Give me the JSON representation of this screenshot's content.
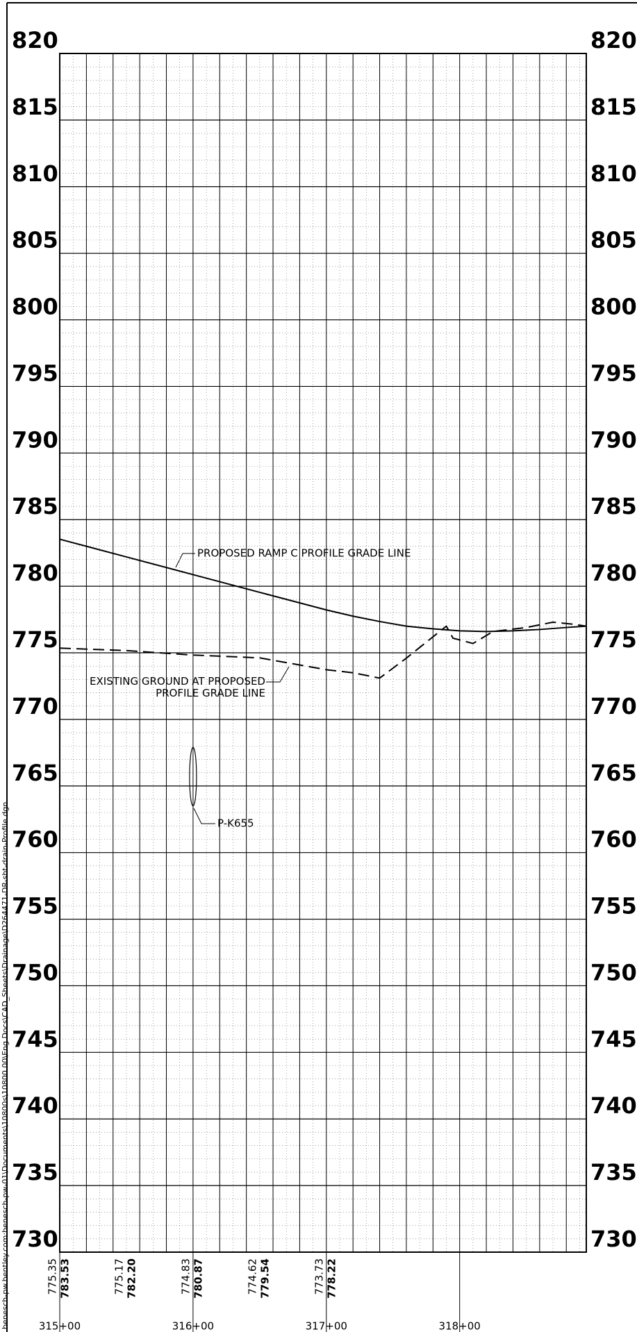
{
  "chart_data": {
    "type": "line",
    "file_path": "benesch-pw.bentley.com:benesch-pw-01\\Documents\\10800s\\10800.00\\Eng Docs\\CAD_Sheets\\Drainage\\D264471-DR-sht-drain-Profile.dgn",
    "xlim": [
      31500,
      31895
    ],
    "ylim": [
      730,
      820
    ],
    "xticks": [
      {
        "value": 31500,
        "label": "315+00"
      },
      {
        "value": 31600,
        "label": "316+00"
      },
      {
        "value": 31700,
        "label": "317+00"
      },
      {
        "value": 31800,
        "label": "318+00"
      }
    ],
    "yticks": [
      730,
      735,
      740,
      745,
      750,
      755,
      760,
      765,
      770,
      775,
      780,
      785,
      790,
      795,
      800,
      805,
      810,
      815,
      820
    ],
    "grid": {
      "x_major": 20,
      "x_minor": 10,
      "y_minor": 1
    },
    "series": [
      {
        "name": "PROPOSED RAMP C PROFILE GRADE LINE",
        "color": "#000000",
        "dash": false,
        "x": [
          31500,
          31550,
          31600,
          31650,
          31700,
          31720,
          31740,
          31760,
          31780,
          31800,
          31820,
          31840,
          31860,
          31880,
          31895
        ],
        "values": [
          783.53,
          782.2,
          780.87,
          779.54,
          778.22,
          777.75,
          777.35,
          777.0,
          776.8,
          776.65,
          776.6,
          776.65,
          776.75,
          776.9,
          777.0
        ],
        "value_labels": [
          "783.53",
          "782.20",
          "780.87",
          "779.54",
          "778.22",
          null,
          null,
          null,
          null,
          null,
          null,
          null,
          null,
          null,
          null
        ]
      },
      {
        "name": "EXISTING GROUND AT PROPOSED\nPROFILE GRADE LINE",
        "color": "#000000",
        "dash": true,
        "x": [
          31500,
          31550,
          31600,
          31650,
          31700,
          31720,
          31740,
          31760,
          31780,
          31790,
          31795,
          31810,
          31825,
          31850,
          31870,
          31885,
          31895
        ],
        "values": [
          775.35,
          775.17,
          774.83,
          774.62,
          773.73,
          773.5,
          773.1,
          774.6,
          776.2,
          777.0,
          776.1,
          775.7,
          776.6,
          776.9,
          777.3,
          777.15,
          777.0
        ],
        "value_labels": [
          "775.35",
          "775.17",
          "774.83",
          "774.62",
          "773.73",
          null,
          null,
          null,
          null,
          null,
          null,
          null,
          null,
          null,
          null,
          null,
          null
        ]
      }
    ],
    "structures": [
      {
        "label": "P-K655",
        "x": 31600,
        "top": 767.9,
        "bottom": 763.5
      }
    ]
  }
}
